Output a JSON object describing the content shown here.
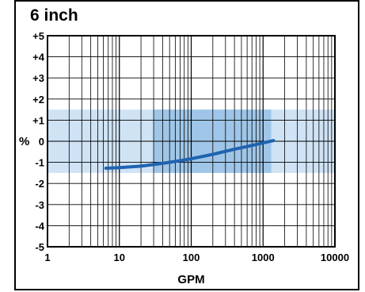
{
  "chart_data": {
    "type": "line",
    "title": "6 inch",
    "xlabel": "GPM",
    "ylabel": "%",
    "x_scale": "log",
    "xlim": [
      1,
      10000
    ],
    "ylim": [
      -5,
      5
    ],
    "x_ticks": [
      "1",
      "10",
      "100",
      "1000",
      "10000"
    ],
    "y_ticks": [
      "+5",
      "+4",
      "+3",
      "+2",
      "+1",
      "0",
      "-1",
      "-2",
      "-3",
      "-4",
      "-5"
    ],
    "grid": true,
    "bands": [
      {
        "x": [
          1,
          10000
        ],
        "y": [
          -1.5,
          1.5
        ],
        "color": "#cfe3f5"
      },
      {
        "x": [
          30,
          1300
        ],
        "y": [
          -1.5,
          1.5
        ],
        "color": "#9fc6e8"
      }
    ],
    "series": [
      {
        "color": "#1f63b0",
        "x": [
          6.5,
          10,
          20,
          40,
          70,
          100,
          200,
          400,
          700,
          1000,
          1400
        ],
        "y": [
          -1.28,
          -1.25,
          -1.18,
          -1.05,
          -0.92,
          -0.83,
          -0.62,
          -0.38,
          -0.2,
          -0.08,
          0.03
        ]
      }
    ]
  }
}
